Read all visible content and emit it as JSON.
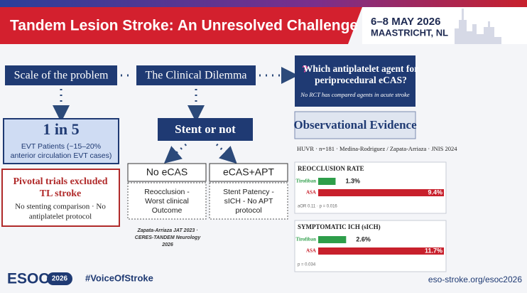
{
  "header": {
    "title": "Tandem Lesion Stroke: An Unresolved Challenge",
    "dates": "6–8 MAY 2026",
    "place": "MAASTRICHT, NL"
  },
  "left": {
    "heading": "Scale of the problem",
    "stat": "1 in 5",
    "stat_lines": [
      "EVT Patients (~15–20%",
      "anterior circulation EVT cases)"
    ],
    "pivotal_title": [
      "Pivotal trials excluded",
      "TL stroke"
    ],
    "pivotal_lines": [
      "No stenting comparison · No",
      "antiplatelet protocol"
    ]
  },
  "middle": {
    "heading": "The Clinical Dilemma",
    "decision": "Stent or not",
    "options": [
      {
        "label": "No eCAS",
        "lines": [
          "Reocclusion -",
          "Worst clinical",
          "Outcome"
        ]
      },
      {
        "label": "eCAS+APT",
        "lines": [
          "Stent Patency -",
          "sICH - No APT",
          "protocol"
        ]
      }
    ],
    "citation": [
      "Zapata-Arriaza JAT 2023 ·",
      "CERES-TANDEM Neurology",
      "2026"
    ]
  },
  "right": {
    "question": [
      "Which antiplatelet agent for",
      "periprocedural eCAS?"
    ],
    "question_note": "No RCT has compared agents in acute stroke",
    "evidence_heading": "Observational Evidence",
    "source": "HUVR · n=181 · Medina-Rodriguez / Zapata-Arriaza · JNIS 2024",
    "charts": [
      {
        "title": "REOCCLUSION RATE",
        "categories": [
          "Tirofiban",
          "ASA"
        ],
        "values": [
          1.3,
          9.4
        ],
        "value_labels": [
          "1.3%",
          "9.4%"
        ],
        "colors": [
          "#2e9e4a",
          "#c8202c"
        ],
        "note": "aOR 0.11 · p = 0.016"
      },
      {
        "title": "SYMPTOMATIC ICH (sICH)",
        "categories": [
          "Tirofiban",
          "ASA"
        ],
        "values": [
          2.6,
          11.7
        ],
        "value_labels": [
          "2.6%",
          "11.7%"
        ],
        "colors": [
          "#2e9e4a",
          "#c8202c"
        ],
        "note": "p = 0.034"
      }
    ]
  },
  "footer": {
    "logo": "ESOC",
    "logo_year": "2026",
    "hashtag": "#VoiceOfStroke",
    "url": "eso-stroke.org/esoc2026"
  }
}
